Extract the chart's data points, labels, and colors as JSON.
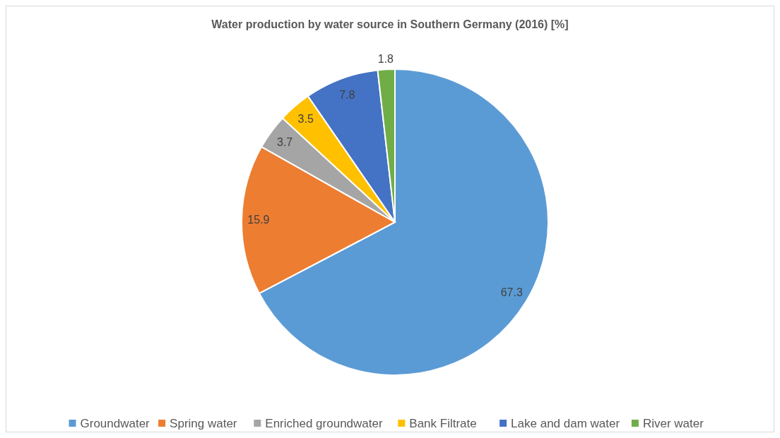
{
  "chart_data": {
    "type": "pie",
    "title": "Water production by water source in Southern Germany (2016) [%]",
    "categories": [
      "Groundwater",
      "Spring water",
      "Enriched groundwater",
      "Bank Filtrate",
      "Lake and dam water",
      "River water"
    ],
    "values": [
      67.3,
      15.9,
      3.7,
      3.5,
      7.8,
      1.8
    ],
    "colors": [
      "#5b9bd5",
      "#ed7d31",
      "#a5a5a5",
      "#ffc000",
      "#4472c4",
      "#70ad47"
    ],
    "data_labels": true,
    "legend": "bottom"
  }
}
